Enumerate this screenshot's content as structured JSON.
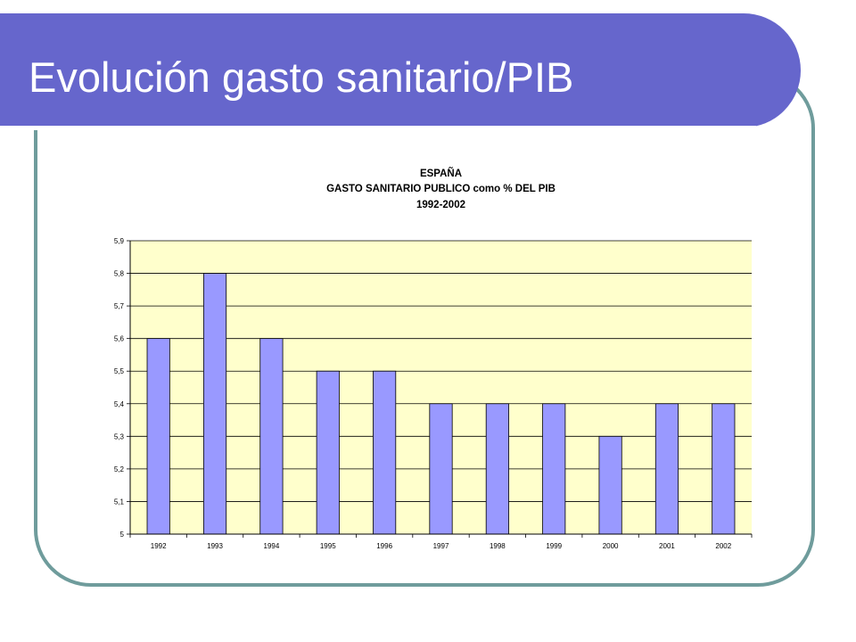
{
  "slide": {
    "title": "Evolución gasto sanitario/PIB"
  },
  "colors": {
    "title_bar": "#6666cc",
    "frame": "#6f9c9c",
    "plot_background": "#ffffcc",
    "bar_fill": "#9999ff"
  },
  "chart_data": {
    "type": "bar",
    "title_lines": [
      "ESPAÑA",
      "GASTO SANITARIO PUBLICO como % DEL PIB",
      "1992-2002"
    ],
    "categories": [
      "1992",
      "1993",
      "1994",
      "1995",
      "1996",
      "1997",
      "1998",
      "1999",
      "2000",
      "2001",
      "2002"
    ],
    "values": [
      5.6,
      5.8,
      5.6,
      5.5,
      5.5,
      5.4,
      5.4,
      5.4,
      5.3,
      5.4,
      5.4
    ],
    "y_ticks": [
      "5",
      "5,1",
      "5,2",
      "5,3",
      "5,4",
      "5,5",
      "5,6",
      "5,7",
      "5,8",
      "5,9"
    ],
    "ylim": [
      5,
      5.9
    ],
    "grid": true,
    "legend": false
  }
}
